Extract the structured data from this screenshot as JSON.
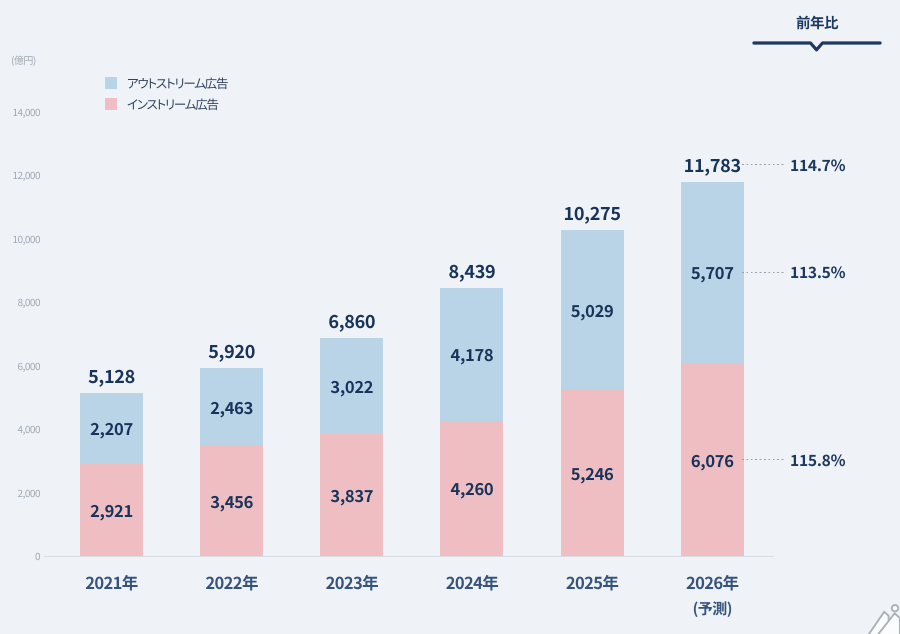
{
  "header": {
    "label": "前年比"
  },
  "legend": {
    "items": [
      {
        "label": "アウトストリーム広告",
        "color": "#b9d3e7"
      },
      {
        "label": "インストリーム広告",
        "color": "#efbec3"
      }
    ]
  },
  "chart_data": {
    "type": "bar",
    "stacked": true,
    "unit_label": "(億円)",
    "categories": [
      "2021年",
      "2022年",
      "2023年",
      "2024年",
      "2025年",
      "2026年"
    ],
    "category_sublabels": [
      "",
      "",
      "",
      "",
      "",
      "(予測)"
    ],
    "series": [
      {
        "name": "アウトストリーム広告",
        "color": "#b9d3e7",
        "values": [
          2207,
          2463,
          3022,
          4178,
          5029,
          5707
        ],
        "labels": [
          "2,207",
          "2,463",
          "3,022",
          "4,178",
          "5,029",
          "5,707"
        ]
      },
      {
        "name": "インストリーム広告",
        "color": "#efbec3",
        "values": [
          2921,
          3456,
          3837,
          4260,
          5246,
          6076
        ],
        "labels": [
          "2,921",
          "3,456",
          "3,837",
          "4,260",
          "5,246",
          "6,076"
        ]
      }
    ],
    "totals": [
      5128,
      5920,
      6860,
      8439,
      10275,
      11783
    ],
    "total_labels": [
      "5,128",
      "5,920",
      "6,860",
      "8,439",
      "10,275",
      "11,783"
    ],
    "ylim": [
      0,
      14000
    ],
    "ytick_step": 2000,
    "ytick_labels": [
      "0",
      "2,000",
      "4,000",
      "6,000",
      "8,000",
      "10,000",
      "12,000",
      "14,000"
    ],
    "grid": false,
    "legend_position": "top-left",
    "yoy_annotations": [
      {
        "label": "114.7%",
        "target": "total"
      },
      {
        "label": "113.5%",
        "target": "series0"
      },
      {
        "label": "115.8%",
        "target": "series1"
      }
    ]
  }
}
